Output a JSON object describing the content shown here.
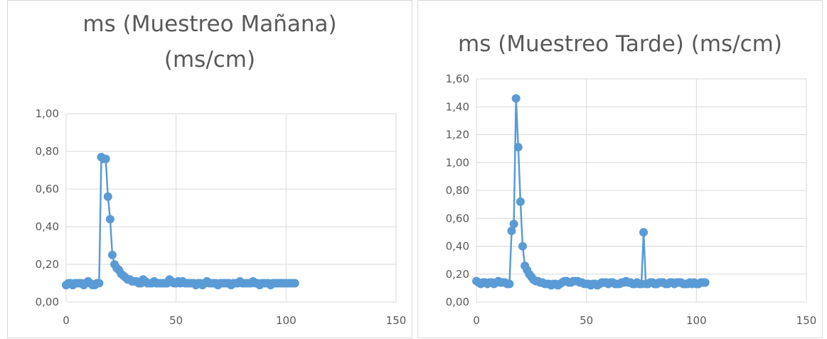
{
  "charts": [
    {
      "title": "ms (Muestreo Mañana)\n(ms/cm)"
    },
    {
      "title": "ms (Muestreo Tarde) (ms/cm)"
    }
  ],
  "chart_data": [
    {
      "type": "scatter",
      "title": "ms (Muestreo Mañana) (ms/cm)",
      "xlabel": "",
      "ylabel": "",
      "xlim": [
        0,
        150
      ],
      "ylim": [
        0,
        1.0
      ],
      "xticks": [
        0,
        50,
        100,
        150
      ],
      "yticks": [
        0,
        0.2,
        0.4,
        0.6,
        0.8,
        1.0
      ],
      "xtick_labels": [
        "0",
        "50",
        "100",
        "150"
      ],
      "ytick_labels": [
        "0,00",
        "0,20",
        "0,40",
        "0,60",
        "0,80",
        "1,00"
      ],
      "grid": true,
      "legend": "none",
      "color": "#5b9bd5",
      "series": [
        {
          "x": [
            0,
            1,
            2,
            3,
            4,
            5,
            6,
            7,
            8,
            9,
            10,
            11,
            12,
            13,
            14,
            15,
            16,
            17,
            18,
            19,
            20,
            21,
            22,
            23,
            24,
            25,
            26,
            27,
            28,
            29,
            30,
            31,
            32,
            33,
            34,
            35,
            36,
            37,
            38,
            39,
            40,
            41,
            42,
            43,
            44,
            45,
            46,
            47,
            48,
            49,
            50,
            51,
            52,
            53,
            54,
            55,
            56,
            57,
            58,
            59,
            60,
            61,
            62,
            63,
            64,
            65,
            66,
            67,
            68,
            69,
            70,
            71,
            72,
            73,
            74,
            75,
            76,
            77,
            78,
            79,
            80,
            81,
            82,
            83,
            84,
            85,
            86,
            87,
            88,
            89,
            90,
            91,
            92,
            93,
            94,
            95,
            96,
            97,
            98,
            99,
            100,
            101,
            102,
            103,
            104
          ],
          "y": [
            0.09,
            0.1,
            0.1,
            0.09,
            0.1,
            0.1,
            0.1,
            0.1,
            0.09,
            0.1,
            0.11,
            0.1,
            0.09,
            0.09,
            0.1,
            0.1,
            0.77,
            0.76,
            0.76,
            0.56,
            0.44,
            0.25,
            0.2,
            0.18,
            0.17,
            0.15,
            0.14,
            0.13,
            0.12,
            0.12,
            0.11,
            0.11,
            0.11,
            0.1,
            0.1,
            0.12,
            0.11,
            0.1,
            0.1,
            0.1,
            0.11,
            0.1,
            0.1,
            0.1,
            0.1,
            0.1,
            0.1,
            0.12,
            0.11,
            0.1,
            0.1,
            0.11,
            0.1,
            0.11,
            0.1,
            0.1,
            0.1,
            0.1,
            0.1,
            0.09,
            0.1,
            0.1,
            0.09,
            0.1,
            0.11,
            0.1,
            0.1,
            0.1,
            0.1,
            0.09,
            0.1,
            0.1,
            0.1,
            0.1,
            0.1,
            0.09,
            0.1,
            0.1,
            0.1,
            0.11,
            0.1,
            0.1,
            0.1,
            0.1,
            0.1,
            0.11,
            0.1,
            0.1,
            0.09,
            0.1,
            0.1,
            0.1,
            0.1,
            0.09,
            0.1,
            0.1,
            0.1,
            0.1,
            0.1,
            0.1,
            0.1,
            0.1,
            0.1,
            0.1,
            0.1
          ]
        }
      ]
    },
    {
      "type": "scatter",
      "title": "ms (Muestreo Tarde) (ms/cm)",
      "xlabel": "",
      "ylabel": "",
      "xlim": [
        0,
        150
      ],
      "ylim": [
        0,
        1.6
      ],
      "xticks": [
        0,
        50,
        100,
        150
      ],
      "yticks": [
        0,
        0.2,
        0.4,
        0.6,
        0.8,
        1.0,
        1.2,
        1.4,
        1.6
      ],
      "xtick_labels": [
        "0",
        "50",
        "100",
        "150"
      ],
      "ytick_labels": [
        "0,00",
        "0,20",
        "0,40",
        "0,60",
        "0,80",
        "1,00",
        "1,20",
        "1,40",
        "1,60"
      ],
      "grid": true,
      "legend": "none",
      "color": "#5b9bd5",
      "series": [
        {
          "x": [
            0,
            1,
            2,
            3,
            4,
            5,
            6,
            7,
            8,
            9,
            10,
            11,
            12,
            13,
            14,
            15,
            16,
            17,
            18,
            19,
            20,
            21,
            22,
            23,
            24,
            25,
            26,
            27,
            28,
            29,
            30,
            31,
            32,
            33,
            34,
            35,
            36,
            37,
            38,
            39,
            40,
            41,
            42,
            43,
            44,
            45,
            46,
            47,
            48,
            49,
            50,
            51,
            52,
            53,
            54,
            55,
            56,
            57,
            58,
            59,
            60,
            61,
            62,
            63,
            64,
            65,
            66,
            67,
            68,
            69,
            70,
            71,
            72,
            73,
            74,
            75,
            76,
            77,
            78,
            79,
            80,
            81,
            82,
            83,
            84,
            85,
            86,
            87,
            88,
            89,
            90,
            91,
            92,
            93,
            94,
            95,
            96,
            97,
            98,
            99,
            100,
            101,
            102,
            103,
            104
          ],
          "y": [
            0.15,
            0.14,
            0.13,
            0.14,
            0.14,
            0.13,
            0.14,
            0.14,
            0.13,
            0.14,
            0.15,
            0.14,
            0.14,
            0.14,
            0.13,
            0.13,
            0.51,
            0.56,
            1.46,
            1.11,
            0.72,
            0.4,
            0.26,
            0.23,
            0.2,
            0.18,
            0.16,
            0.15,
            0.15,
            0.14,
            0.14,
            0.13,
            0.13,
            0.13,
            0.12,
            0.13,
            0.13,
            0.12,
            0.13,
            0.14,
            0.15,
            0.15,
            0.14,
            0.14,
            0.15,
            0.15,
            0.15,
            0.14,
            0.14,
            0.13,
            0.13,
            0.13,
            0.12,
            0.13,
            0.13,
            0.12,
            0.13,
            0.14,
            0.14,
            0.14,
            0.13,
            0.14,
            0.14,
            0.13,
            0.13,
            0.13,
            0.14,
            0.14,
            0.15,
            0.14,
            0.14,
            0.13,
            0.13,
            0.14,
            0.13,
            0.13,
            0.5,
            0.13,
            0.13,
            0.14,
            0.14,
            0.13,
            0.13,
            0.14,
            0.14,
            0.14,
            0.13,
            0.13,
            0.14,
            0.14,
            0.13,
            0.14,
            0.14,
            0.14,
            0.13,
            0.13,
            0.13,
            0.14,
            0.13,
            0.14,
            0.13,
            0.13,
            0.14,
            0.14,
            0.14
          ]
        }
      ]
    }
  ]
}
